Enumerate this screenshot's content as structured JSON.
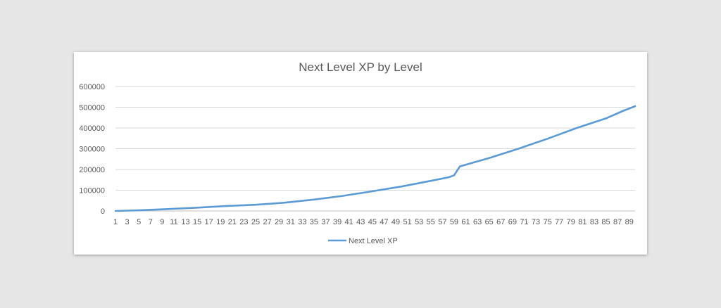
{
  "chart_data": {
    "type": "line",
    "title": "Next Level XP by Level",
    "xlabel": "",
    "ylabel": "",
    "ylim": [
      0,
      600000
    ],
    "yticks": [
      0,
      100000,
      200000,
      300000,
      400000,
      500000,
      600000
    ],
    "xticks": [
      1,
      3,
      5,
      7,
      9,
      11,
      13,
      15,
      17,
      19,
      21,
      23,
      25,
      27,
      29,
      31,
      33,
      35,
      37,
      39,
      41,
      43,
      45,
      47,
      49,
      51,
      53,
      55,
      57,
      59,
      61,
      63,
      65,
      67,
      69,
      71,
      73,
      75,
      77,
      79,
      81,
      83,
      85,
      87,
      89
    ],
    "x_range": [
      1,
      90
    ],
    "grid": true,
    "legend_position": "bottom",
    "color": "#5b9bd5",
    "series": [
      {
        "name": "Next Level XP",
        "x": [
          1,
          5,
          10,
          15,
          20,
          25,
          30,
          35,
          40,
          45,
          50,
          55,
          58,
          59,
          60,
          61,
          65,
          70,
          75,
          80,
          85,
          88,
          90
        ],
        "values": [
          0,
          3000,
          9000,
          16000,
          24000,
          30000,
          40000,
          55000,
          73000,
          95000,
          118000,
          145000,
          162000,
          172000,
          215000,
          223000,
          255000,
          300000,
          348000,
          400000,
          446000,
          483000,
          505000
        ]
      }
    ]
  }
}
